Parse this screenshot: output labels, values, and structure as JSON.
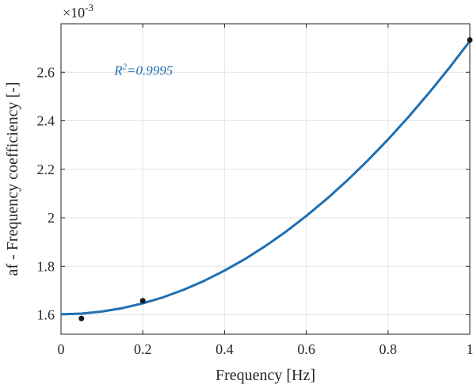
{
  "chart_data": {
    "type": "scatter",
    "xlabel": "Frequency [Hz]",
    "ylabel": "af - Frequency coefficiency [-]",
    "exponent_label": "×10",
    "exponent_power": "-3",
    "xlim": [
      0,
      1
    ],
    "ylim": [
      1.52,
      2.8
    ],
    "x_ticks": [
      0,
      0.2,
      0.4,
      0.6,
      0.8,
      1
    ],
    "x_tick_labels": [
      "0",
      "0.2",
      "0.4",
      "0.6",
      "0.8",
      "1"
    ],
    "y_ticks": [
      1.6,
      1.8,
      2.0,
      2.2,
      2.4,
      2.6
    ],
    "y_tick_labels": [
      "1.6",
      "1.8",
      "2",
      "2.2",
      "2.4",
      "2.6"
    ],
    "grid": true,
    "series": [
      {
        "kind": "points",
        "x": [
          0.05,
          0.2,
          1.0
        ],
        "y": [
          1.585,
          1.658,
          2.733
        ],
        "color": "#1a1a1a"
      },
      {
        "kind": "fit-curve",
        "x": [
          0,
          0.05,
          0.1,
          0.15,
          0.2,
          0.25,
          0.3,
          0.35,
          0.4,
          0.45,
          0.5,
          0.55,
          0.6,
          0.65,
          0.7,
          0.75,
          0.8,
          0.85,
          0.9,
          0.95,
          1.0
        ],
        "y": [
          1.602,
          1.6048,
          1.6133,
          1.6273,
          1.647,
          1.6723,
          1.7033,
          1.7399,
          1.7821,
          1.8299,
          1.8835,
          1.9426,
          2.0074,
          2.0778,
          2.1539,
          2.2356,
          2.3229,
          2.4159,
          2.5145,
          2.6187,
          2.7286
        ],
        "color": "#1f6fb2"
      }
    ],
    "annotation": {
      "prefix": "R",
      "sup": "2",
      "suffix": "=0.9995",
      "x": 0.13,
      "y": 2.59,
      "color": "#1f6fb2"
    }
  }
}
